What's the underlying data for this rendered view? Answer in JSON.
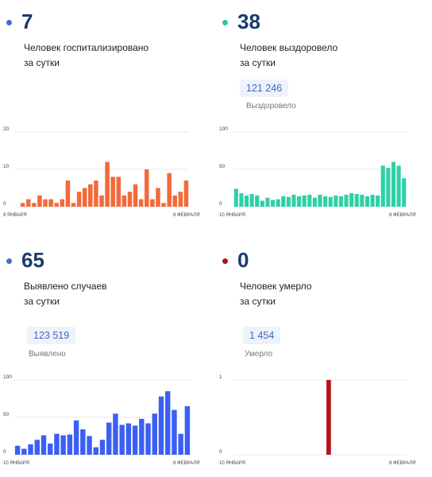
{
  "panels": [
    {
      "value": "7",
      "color": "#3d6fd6",
      "line1": "Человек госпитализировано",
      "line2": "за сутки",
      "chart_data": {
        "type": "bar",
        "values": [
          0,
          1,
          2,
          1,
          3,
          2,
          2,
          1,
          2,
          7,
          1,
          4,
          5,
          6,
          7,
          3,
          12,
          8,
          8,
          3,
          4,
          6,
          2,
          10,
          2,
          5,
          1,
          9,
          3,
          4,
          7
        ],
        "ylim": [
          0,
          20
        ],
        "yticks": [
          "0",
          "10",
          "20"
        ],
        "xlabels": [
          "9 ЯНВАРЯ",
          "8 ФЕВРАЛЯ"
        ],
        "color": "#f26a3c"
      }
    },
    {
      "value": "38",
      "color": "#2ec4a3",
      "line1": "Человек выздоровело",
      "line2": "за сутки",
      "chip": "121 246",
      "chip_label": "Выздоровело",
      "chart_data": {
        "type": "bar",
        "values": [
          24,
          18,
          15,
          17,
          15,
          8,
          12,
          9,
          10,
          14,
          13,
          16,
          14,
          15,
          16,
          12,
          16,
          14,
          13,
          15,
          14,
          16,
          18,
          17,
          16,
          14,
          16,
          15,
          55,
          52,
          60,
          55,
          38
        ],
        "ylim": [
          0,
          100
        ],
        "yticks": [
          "0",
          "50",
          "100"
        ],
        "xlabels": [
          "10 ЯНВАРЯ",
          "8 ФЕВРАЛЯ"
        ],
        "color": "#2fd0a6"
      }
    },
    {
      "value": "65",
      "color": "#3d6fd6",
      "line1": "Выявлено случаев",
      "line2": "за сутки",
      "chip": "123 519",
      "chip_label": "Выявлено",
      "chart_data": {
        "type": "bar",
        "values": [
          12,
          8,
          14,
          20,
          26,
          15,
          28,
          26,
          27,
          46,
          34,
          25,
          10,
          20,
          43,
          55,
          40,
          42,
          39,
          48,
          42,
          55,
          78,
          85,
          60,
          28,
          65
        ],
        "ylim": [
          0,
          100
        ],
        "yticks": [
          "0",
          "50",
          "100"
        ],
        "xlabels": [
          "10 ЯНВАРЯ",
          "8 ФЕВРАЛЯ"
        ],
        "color": "#3b5ff5"
      }
    },
    {
      "value": "0",
      "color": "#b5121b",
      "line1": "Человек умерло",
      "line2": "за сутки",
      "chip": "1 454",
      "chip_label": "Умерло",
      "chart_data": {
        "type": "bar",
        "values": [
          0,
          0,
          0,
          0,
          0,
          0,
          0,
          0,
          0,
          0,
          0,
          0,
          0,
          0,
          0,
          0,
          1,
          0,
          0,
          0,
          0,
          0,
          0,
          0,
          0,
          0,
          0,
          0,
          0,
          0
        ],
        "ylim": [
          0,
          1
        ],
        "yticks": [
          "0",
          "1"
        ],
        "xlabels": [
          "10 ЯНВАРЯ",
          "8 ФЕВРАЛЯ"
        ],
        "color": "#b5121b"
      }
    }
  ]
}
